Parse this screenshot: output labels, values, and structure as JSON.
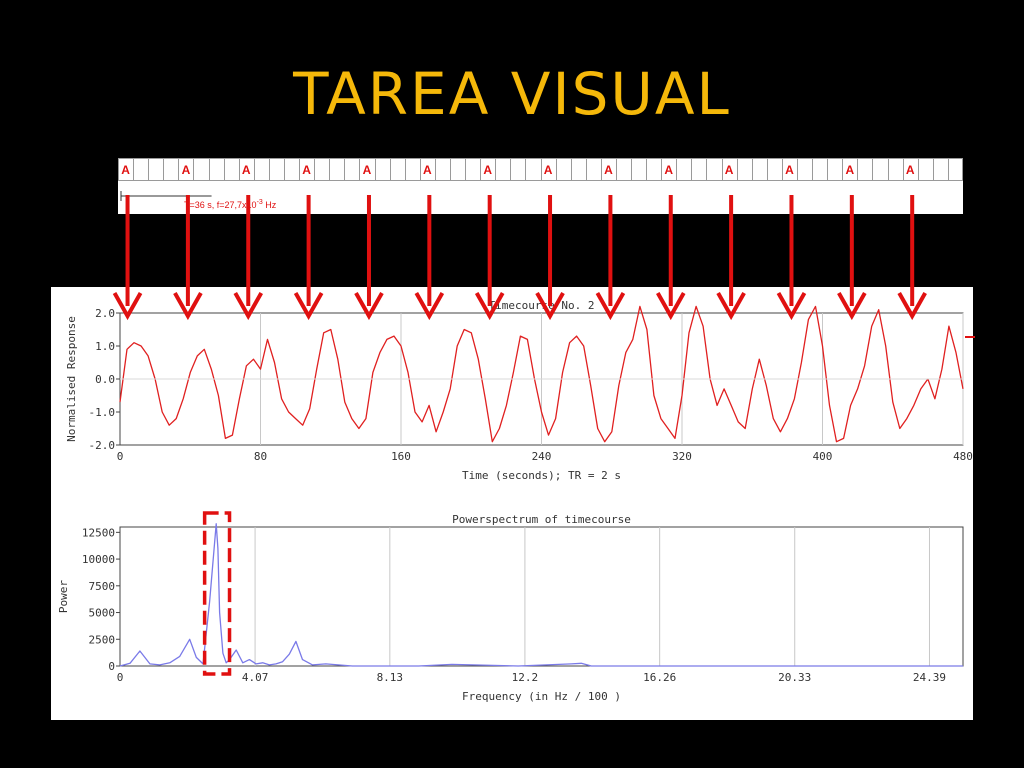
{
  "slide": {
    "title": "TAREA VISUAL"
  },
  "block_design": {
    "block_label": "A",
    "block_count": 14,
    "annotation_main": "T=36 s, f=27,7x10",
    "annotation_exp": "-3",
    "annotation_unit": " Hz",
    "colors": {
      "label": "#e01010",
      "grid": "#9a9a9a",
      "arrow": "#e01010"
    }
  },
  "chart_data": [
    {
      "type": "line",
      "title": "Timecourse No. 2",
      "xlabel": "Time (seconds); TR = 2 s",
      "ylabel": "Normalised Response",
      "xlim": [
        0,
        480
      ],
      "ylim": [
        -2.0,
        2.0
      ],
      "xticks": [
        0,
        80,
        160,
        240,
        320,
        400,
        480
      ],
      "yticks": [
        "2.0",
        "1.0",
        "0.0",
        "-1.0",
        "-2.0"
      ],
      "grid": true,
      "color": "#e02020",
      "series": [
        {
          "x": [
            0,
            4,
            8,
            12,
            16,
            20,
            24,
            28,
            32,
            36,
            40,
            44,
            48,
            52,
            56,
            60,
            64,
            68,
            72,
            76,
            80,
            84,
            88,
            92,
            96,
            100,
            104,
            108,
            112,
            116,
            120,
            124,
            128,
            132,
            136,
            140,
            144,
            148,
            152,
            156,
            160,
            164,
            168,
            172,
            176,
            180,
            184,
            188,
            192,
            196,
            200,
            204,
            208,
            212,
            216,
            220,
            224,
            228,
            232,
            236,
            240,
            244,
            248,
            252,
            256,
            260,
            264,
            268,
            272,
            276,
            280,
            284,
            288,
            292,
            296,
            300,
            304,
            308,
            312,
            316,
            320,
            324,
            328,
            332,
            336,
            340,
            344,
            348,
            352,
            356,
            360,
            364,
            368,
            372,
            376,
            380,
            384,
            388,
            392,
            396,
            400,
            404,
            408,
            412,
            416,
            420,
            424,
            428,
            432,
            436,
            440,
            444,
            448,
            452,
            456,
            460,
            464,
            468,
            472,
            476,
            480
          ],
          "values": [
            -0.7,
            0.9,
            1.1,
            1.0,
            0.7,
            0.0,
            -1.0,
            -1.4,
            -1.2,
            -0.6,
            0.2,
            0.7,
            0.9,
            0.3,
            -0.5,
            -1.8,
            -1.7,
            -0.6,
            0.4,
            0.6,
            0.3,
            1.2,
            0.5,
            -0.6,
            -1.0,
            -1.2,
            -1.4,
            -0.9,
            0.3,
            1.4,
            1.5,
            0.6,
            -0.7,
            -1.2,
            -1.5,
            -1.2,
            0.2,
            0.8,
            1.2,
            1.3,
            1.0,
            0.2,
            -1.0,
            -1.3,
            -0.8,
            -1.6,
            -1.0,
            -0.3,
            1.0,
            1.5,
            1.4,
            0.6,
            -0.6,
            -1.9,
            -1.5,
            -0.8,
            0.2,
            1.3,
            1.2,
            0.0,
            -1.0,
            -1.7,
            -1.2,
            0.2,
            1.1,
            1.3,
            1.0,
            -0.2,
            -1.5,
            -1.9,
            -1.6,
            -0.2,
            0.8,
            1.2,
            2.2,
            1.5,
            -0.5,
            -1.2,
            -1.5,
            -1.8,
            -0.5,
            1.4,
            2.2,
            1.6,
            0.0,
            -0.8,
            -0.3,
            -0.8,
            -1.3,
            -1.5,
            -0.3,
            0.6,
            -0.2,
            -1.2,
            -1.6,
            -1.2,
            -0.6,
            0.5,
            1.8,
            2.2,
            1.0,
            -0.8,
            -1.9,
            -1.8,
            -0.8,
            -0.3,
            0.4,
            1.6,
            2.1,
            1.0,
            -0.7,
            -1.5,
            -1.2,
            -0.8,
            -0.3,
            0.0,
            -0.6,
            0.3,
            1.6,
            0.8,
            -0.3
          ]
        }
      ]
    },
    {
      "type": "line",
      "title": "Powerspectrum of timecourse",
      "xlabel": "Frequency (in Hz / 100 )",
      "ylabel": "Power",
      "xlim": [
        0,
        25.4
      ],
      "ylim": [
        0,
        13000
      ],
      "xticks": [
        "0",
        "4.07",
        "8.13",
        "12.2",
        "16.26",
        "20.33",
        "24.39"
      ],
      "yticks": [
        0,
        2500,
        5000,
        7500,
        10000,
        12500
      ],
      "grid": true,
      "color": "#7a7ae8",
      "highlight": {
        "from": 2.55,
        "to": 3.3,
        "color": "#e01010"
      },
      "series": [
        {
          "x": [
            0,
            0.3,
            0.6,
            0.9,
            1.2,
            1.5,
            1.8,
            2.1,
            2.3,
            2.5,
            2.7,
            2.9,
            2.95,
            3.0,
            3.1,
            3.2,
            3.3,
            3.5,
            3.7,
            3.9,
            4.1,
            4.3,
            4.5,
            4.7,
            4.9,
            5.1,
            5.3,
            5.5,
            5.8,
            6.2,
            7,
            9,
            10,
            12,
            13.6,
            13.9,
            14.2,
            16,
            20,
            25.4
          ],
          "values": [
            0,
            250,
            1400,
            200,
            100,
            300,
            900,
            2500,
            800,
            200,
            6000,
            13300,
            11000,
            5000,
            1200,
            300,
            600,
            1500,
            300,
            600,
            200,
            300,
            100,
            200,
            400,
            1100,
            2300,
            600,
            100,
            200,
            0,
            0,
            150,
            0,
            200,
            250,
            0,
            0,
            0,
            0
          ]
        }
      ]
    }
  ]
}
